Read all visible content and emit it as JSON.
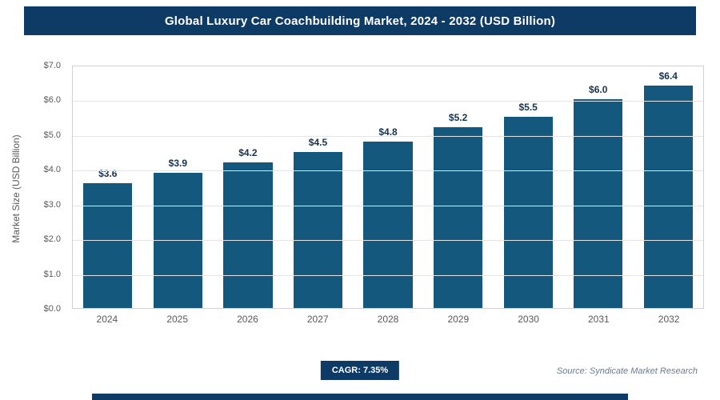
{
  "header": {
    "title": "Global Luxury Car Coachbuilding Market, 2024 - 2032 (USD Billion)"
  },
  "chart_data": {
    "type": "bar",
    "title": "Global Luxury Car Coachbuilding Market, 2024 - 2032 (USD Billion)",
    "categories": [
      "2024",
      "2025",
      "2026",
      "2027",
      "2028",
      "2029",
      "2030",
      "2031",
      "2032"
    ],
    "values": [
      3.6,
      3.9,
      4.2,
      4.5,
      4.8,
      5.2,
      5.5,
      6.0,
      6.4
    ],
    "value_labels": [
      "$3.6",
      "$3.9",
      "$4.2",
      "$4.5",
      "$4.8",
      "$5.2",
      "$5.5",
      "$6.0",
      "$6.4"
    ],
    "xlabel": "",
    "ylabel": "Market Size (USD Billion)",
    "ylim": [
      0,
      7
    ],
    "ytick_labels": [
      "$0.0",
      "$1.0",
      "$2.0",
      "$3.0",
      "$4.0",
      "$5.0",
      "$6.0",
      "$7.0"
    ],
    "grid": true,
    "legend": "none"
  },
  "footer": {
    "cagr_label": "CAGR: 7.35%",
    "source": "Source: Syndicate Market Research"
  },
  "colors": {
    "navy": "#0e3b66",
    "bar": "#14587e",
    "grid": "#e4e4e4",
    "axis_text": "#595959",
    "source_text": "#6b7d8d"
  }
}
